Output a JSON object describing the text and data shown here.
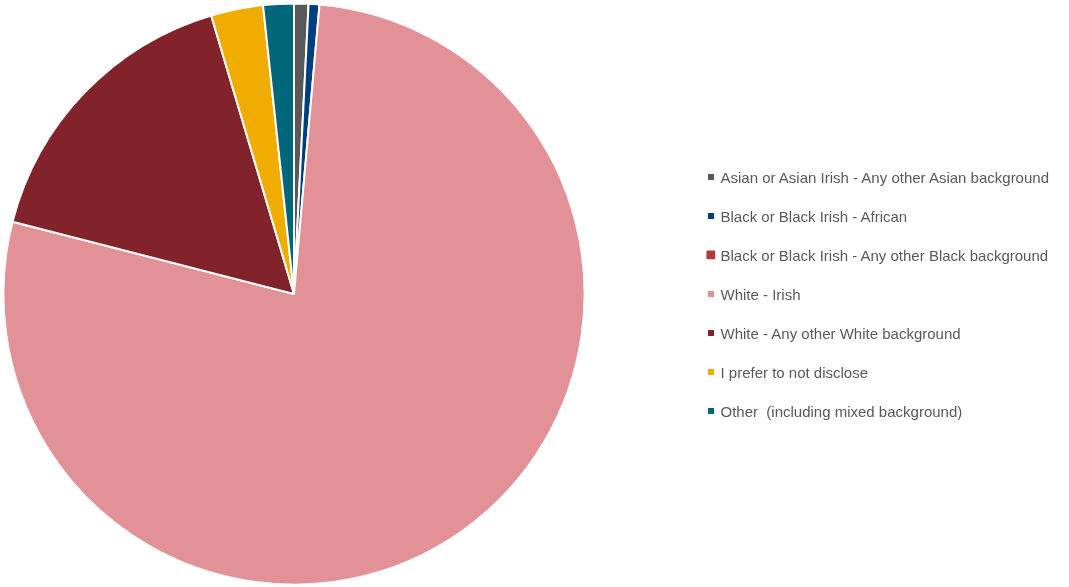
{
  "chart_data": {
    "type": "pie",
    "categories": [
      "Asian or Asian Irish - Any other Asian background",
      "Black or Black Irish - African",
      "Black or Black Irish - Any other Black background",
      "White - Irish",
      "White - Any other White background",
      "I prefer to not disclose",
      "Other  (including mixed background)"
    ],
    "values": [
      0.8,
      0.6,
      0,
      77.6,
      16.4,
      2.9,
      1.7
    ],
    "colors": [
      "#595959",
      "#003f7f",
      "#b23a3f",
      "#e29196",
      "#82222a",
      "#f0ad00",
      "#00667a"
    ],
    "legend": "right"
  }
}
